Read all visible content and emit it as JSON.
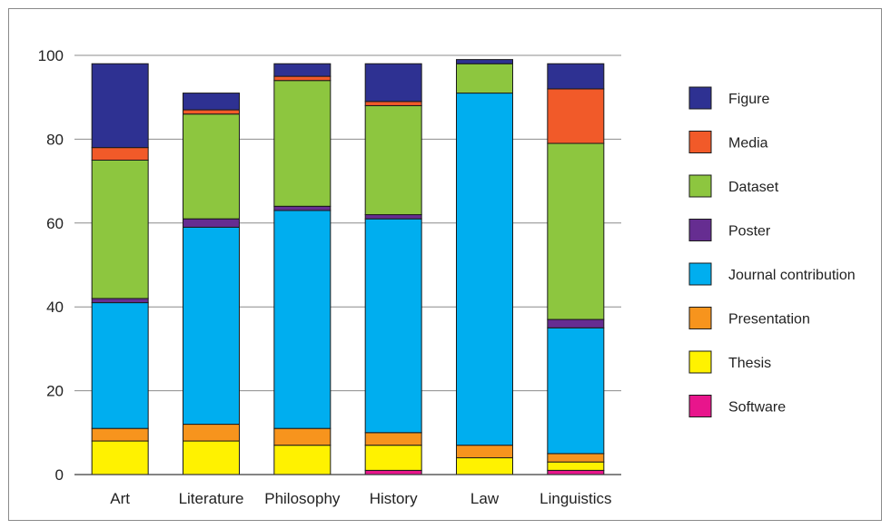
{
  "chart_data": {
    "type": "bar",
    "stacked": true,
    "title": "",
    "xlabel": "",
    "ylabel": "",
    "ylim": [
      0,
      100
    ],
    "yticks": [
      0,
      20,
      40,
      60,
      80,
      100
    ],
    "grid": "horizontal",
    "legend_position": "right",
    "categories": [
      "Art",
      "Literature",
      "Philosophy",
      "History",
      "Law",
      "Linguistics"
    ],
    "series": [
      {
        "name": "Software",
        "color": "#e8158c",
        "values": [
          0,
          0,
          0,
          1,
          0,
          1
        ]
      },
      {
        "name": "Thesis",
        "color": "#fff200",
        "values": [
          8,
          8,
          7,
          6,
          4,
          2
        ]
      },
      {
        "name": "Presentation",
        "color": "#f7941d",
        "values": [
          3,
          4,
          4,
          3,
          3,
          2
        ]
      },
      {
        "name": "Journal contribution",
        "color": "#00aeef",
        "values": [
          30,
          47,
          52,
          51,
          84,
          30
        ]
      },
      {
        "name": "Poster",
        "color": "#662d91",
        "values": [
          1,
          2,
          1,
          1,
          0,
          2
        ]
      },
      {
        "name": "Dataset",
        "color": "#8dc63f",
        "values": [
          33,
          25,
          30,
          26,
          7,
          42
        ]
      },
      {
        "name": "Media",
        "color": "#f15a29",
        "values": [
          3,
          1,
          1,
          1,
          0,
          13
        ]
      },
      {
        "name": "Figure",
        "color": "#2e3192",
        "values": [
          20,
          4,
          3,
          9,
          1,
          6
        ]
      }
    ],
    "legend_order": [
      "Figure",
      "Media",
      "Dataset",
      "Poster",
      "Journal contribution",
      "Presentation",
      "Thesis",
      "Software"
    ]
  }
}
